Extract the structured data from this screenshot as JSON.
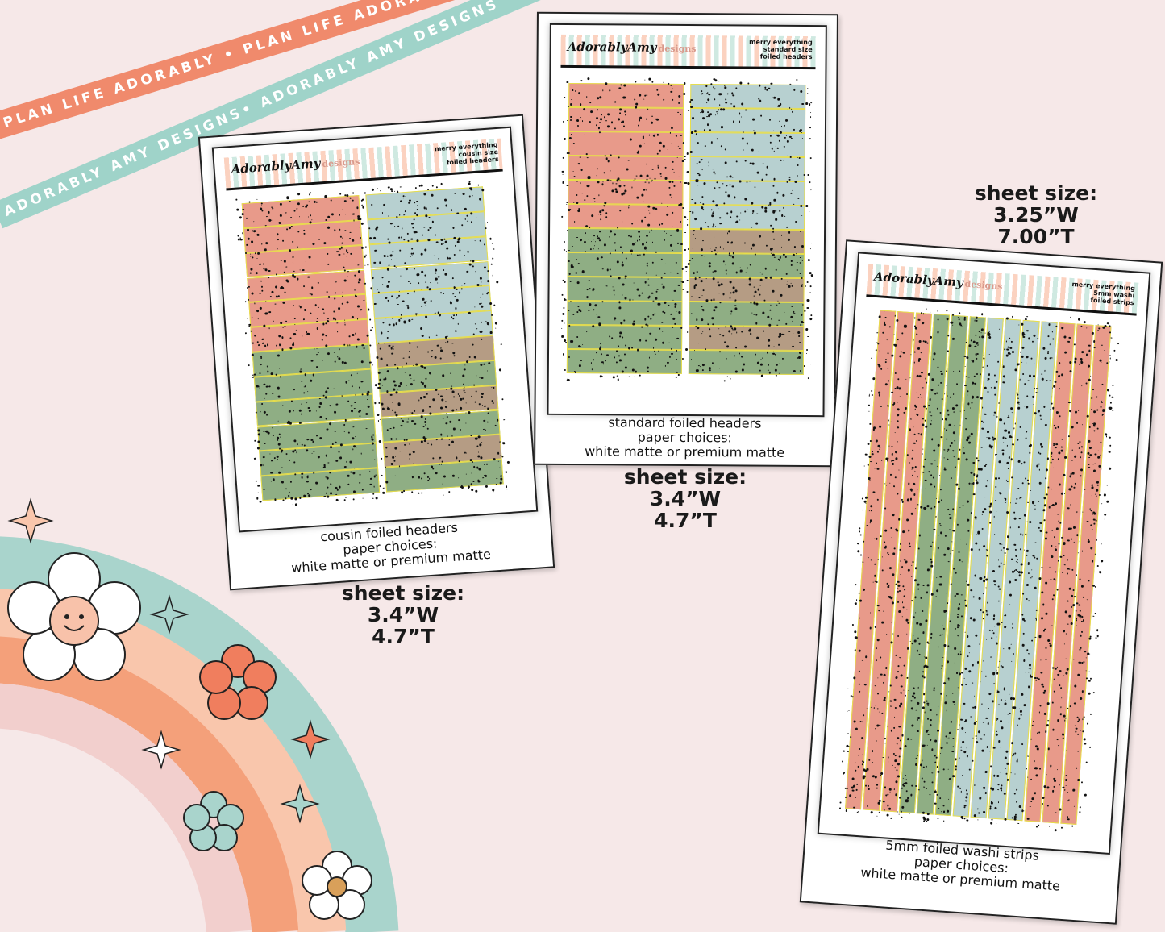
{
  "ribbons": {
    "coral": "PLAN LIFE ADORABLY • PLAN LIFE ADORABLY",
    "teal": "ADORABLY AMY DESIGNS• ADORABLY AMY DESIGNS •AD"
  },
  "brand": {
    "logo": "AdorablyAmy",
    "logo_suffix": "designs"
  },
  "colors": {
    "coral": "#e89a8a",
    "sage": "#8fae84",
    "blue": "#b7d0d0",
    "foil": "#e8de4a",
    "background": "#f6e8e8"
  },
  "products": [
    {
      "header_lines": [
        "merry everything",
        "cousin size",
        "foiled headers"
      ],
      "caption": [
        "cousin foiled headers",
        "paper choices:",
        "white matte or premium matte"
      ],
      "size_label": "sheet size:",
      "width": "3.4”W",
      "height": "4.7”T"
    },
    {
      "header_lines": [
        "merry everything",
        "standard size",
        "foiled headers"
      ],
      "caption": [
        "standard foiled headers",
        "paper choices:",
        "white matte or premium matte"
      ],
      "size_label": "sheet size:",
      "width": "3.4”W",
      "height": "4.7”T"
    },
    {
      "header_lines": [
        "merry everything",
        "5mm washi",
        "foiled strips"
      ],
      "caption": [
        "5mm foiled washi strips",
        "paper choices:",
        "white matte or premium matte"
      ],
      "size_label": "sheet size:",
      "width": "3.25”W",
      "height": "7.00”T"
    }
  ]
}
